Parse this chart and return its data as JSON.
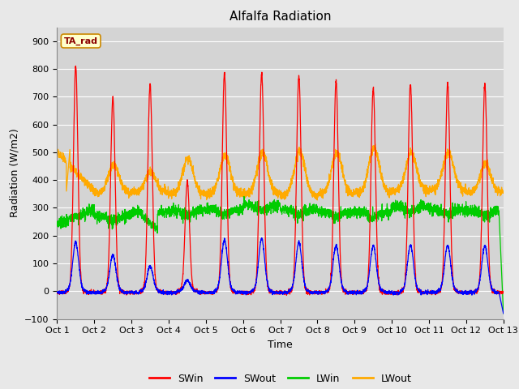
{
  "title": "Alfalfa Radiation",
  "ylabel": "Radiation (W/m2)",
  "xlabel": "Time",
  "ylim": [
    -100,
    950
  ],
  "yticks": [
    -100,
    0,
    100,
    200,
    300,
    400,
    500,
    600,
    700,
    800,
    900
  ],
  "x_tick_labels": [
    "Oct 1",
    "Oct 2",
    "Oct 3",
    "Oct 4",
    "Oct 5",
    "Oct 6",
    "Oct 7",
    "Oct 8",
    "Oct 9",
    "Oct 10",
    "Oct 11",
    "Oct 12",
    "Oct 13"
  ],
  "series_colors": {
    "SWin": "#ff0000",
    "SWout": "#0000ff",
    "LWin": "#00cc00",
    "LWout": "#ffaa00"
  },
  "legend_label": "TA_rad",
  "background_color": "#e8e8e8",
  "plot_bg_color": "#d4d4d4",
  "grid_color": "#ffffff",
  "title_fontsize": 11,
  "label_fontsize": 9,
  "tick_fontsize": 8,
  "SWin_peaks": [
    810,
    695,
    745,
    395,
    785,
    785,
    775,
    755,
    730,
    745,
    750,
    745
  ],
  "SWout_peaks": [
    175,
    130,
    90,
    40,
    185,
    190,
    175,
    165,
    165,
    165,
    165,
    165
  ],
  "LWin_base": [
    265,
    270,
    285,
    290,
    295,
    310,
    295,
    285,
    285,
    305,
    295,
    290
  ],
  "LWout_base": [
    360,
    355,
    355,
    350,
    350,
    350,
    345,
    350,
    355,
    360,
    365,
    355
  ],
  "LWout_peak": [
    510,
    455,
    430,
    480,
    490,
    500,
    505,
    500,
    515,
    500,
    500,
    460
  ]
}
